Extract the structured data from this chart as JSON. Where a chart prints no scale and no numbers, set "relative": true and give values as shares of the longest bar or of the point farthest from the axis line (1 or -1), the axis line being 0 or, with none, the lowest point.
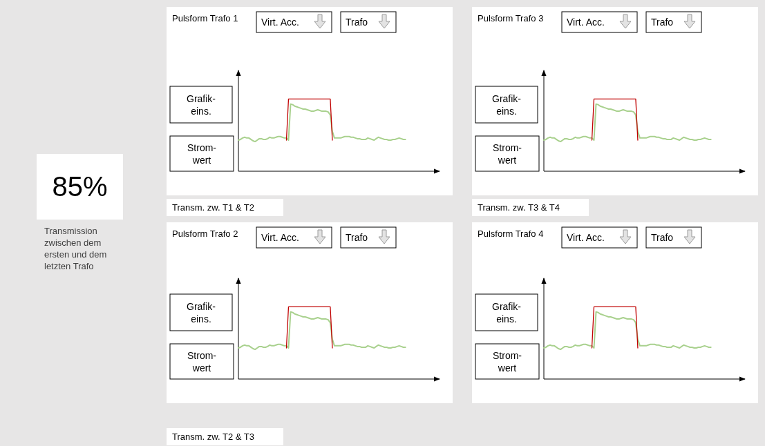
{
  "chart_data": [
    {
      "type": "other",
      "title": "85%",
      "annotations": [
        "Transmission zwischen dem ersten und dem letzten Trafo"
      ]
    },
    {
      "type": "line",
      "title": "Pulsform Trafo 1",
      "relative": true,
      "annotations": [
        "Virt. Acc.",
        "Trafo",
        "Grafik-\neins.",
        "Strom-\nwert",
        "Transm. zw. T1 & T2"
      ],
      "categories": [
        null,
        null,
        null,
        null,
        null,
        null,
        null,
        null,
        null,
        null,
        null,
        null,
        null,
        null,
        null,
        null,
        null,
        null,
        null,
        null,
        null,
        null,
        null,
        null,
        null,
        null,
        null,
        null,
        null,
        null,
        null,
        null,
        null,
        null,
        null,
        null,
        null,
        null,
        null,
        null,
        null,
        null,
        null,
        null,
        null,
        null,
        null,
        null,
        null,
        null,
        null,
        null,
        null,
        null,
        null,
        null,
        null,
        null,
        null,
        null,
        null,
        null,
        null,
        null,
        null,
        null,
        null,
        null,
        null,
        null,
        null,
        null,
        null,
        null,
        null,
        null,
        null,
        null,
        null,
        null,
        null,
        null,
        null,
        null,
        null,
        null,
        null,
        null,
        null,
        null,
        null,
        null,
        null,
        null,
        null,
        null,
        null
      ],
      "series": [
        {
          "color": "#a9d18e",
          "values": [
            0.43,
            0.44,
            0.46,
            0.47,
            0.46,
            0.46,
            0.44,
            0.42,
            0.41,
            0.43,
            0.45,
            0.45,
            0.44,
            0.44,
            0.45,
            0.47,
            0.46,
            0.46,
            0.47,
            0.48,
            0.48,
            0.47,
            0.46,
            0.46,
            0.43,
            0.93,
            0.92,
            0.9,
            0.89,
            0.88,
            0.87,
            0.86,
            0.86,
            0.85,
            0.84,
            0.83,
            0.83,
            0.84,
            0.85,
            0.84,
            0.83,
            0.83,
            0.83,
            0.82,
            0.78,
            0.55,
            0.46,
            0.46,
            0.46,
            0.46,
            0.47,
            0.48,
            0.48,
            0.48,
            0.47,
            0.47,
            0.46,
            0.45,
            0.45,
            0.44,
            0.44,
            0.44,
            0.46,
            0.45,
            0.44,
            0.43,
            0.45,
            0.47,
            0.46,
            0.45,
            0.44,
            0.44,
            0.43,
            0.43,
            0.44,
            0.44,
            0.45,
            0.46,
            0.45,
            0.44,
            0.44,
            null,
            null,
            null,
            null,
            null,
            null,
            null,
            null,
            null,
            null,
            null,
            null,
            null,
            null,
            null,
            null
          ]
        },
        {
          "color": "#c00000",
          "values": [
            null,
            null,
            null,
            null,
            null,
            null,
            null,
            null,
            null,
            null,
            null,
            null,
            null,
            null,
            null,
            null,
            null,
            null,
            null,
            null,
            null,
            null,
            null,
            0.43,
            1,
            1,
            1,
            1,
            1,
            1,
            1,
            1,
            1,
            1,
            1,
            1,
            1,
            1,
            1,
            1,
            1,
            1,
            1,
            1,
            1,
            0.43,
            null,
            null,
            null,
            null,
            null,
            null,
            null,
            null,
            null,
            null,
            null,
            null,
            null,
            null,
            null,
            null,
            null,
            null,
            null,
            null,
            null,
            null,
            null,
            null,
            null,
            null,
            null,
            null,
            null,
            null,
            null,
            null,
            null,
            null,
            null,
            null,
            null,
            null,
            null,
            null,
            null,
            null,
            null,
            null,
            null,
            null,
            null,
            null,
            null,
            null,
            null
          ]
        }
      ]
    },
    {
      "type": "line",
      "title": "Pulsform Trafo 3",
      "relative": true,
      "annotations": [
        "Virt. Acc.",
        "Trafo",
        "Grafik-\neins.",
        "Strom-\nwert",
        "Transm. zw. T3 & T4"
      ],
      "categories": [
        null,
        null,
        null,
        null,
        null,
        null,
        null,
        null,
        null,
        null,
        null,
        null,
        null,
        null,
        null,
        null,
        null,
        null,
        null,
        null,
        null,
        null,
        null,
        null,
        null,
        null,
        null,
        null,
        null,
        null,
        null,
        null,
        null,
        null,
        null,
        null,
        null,
        null,
        null,
        null,
        null,
        null,
        null,
        null,
        null,
        null,
        null,
        null,
        null,
        null,
        null,
        null,
        null,
        null,
        null,
        null,
        null,
        null,
        null,
        null,
        null,
        null,
        null,
        null,
        null,
        null,
        null,
        null,
        null,
        null,
        null,
        null,
        null,
        null,
        null,
        null,
        null,
        null,
        null,
        null,
        null,
        null,
        null,
        null,
        null,
        null,
        null,
        null,
        null,
        null,
        null,
        null,
        null,
        null,
        null,
        null,
        null
      ],
      "series": [
        {
          "color": "#a9d18e",
          "values": [
            0.43,
            0.44,
            0.46,
            0.47,
            0.46,
            0.46,
            0.44,
            0.42,
            0.41,
            0.43,
            0.45,
            0.45,
            0.44,
            0.44,
            0.45,
            0.47,
            0.46,
            0.46,
            0.47,
            0.48,
            0.48,
            0.47,
            0.46,
            0.46,
            0.43,
            0.93,
            0.92,
            0.9,
            0.89,
            0.88,
            0.87,
            0.86,
            0.86,
            0.85,
            0.84,
            0.83,
            0.83,
            0.84,
            0.85,
            0.84,
            0.83,
            0.83,
            0.83,
            0.82,
            0.78,
            0.55,
            0.46,
            0.46,
            0.46,
            0.46,
            0.47,
            0.48,
            0.48,
            0.48,
            0.47,
            0.47,
            0.46,
            0.45,
            0.45,
            0.44,
            0.44,
            0.44,
            0.46,
            0.45,
            0.44,
            0.43,
            0.45,
            0.47,
            0.46,
            0.45,
            0.44,
            0.44,
            0.43,
            0.43,
            0.44,
            0.44,
            0.45,
            0.46,
            0.45,
            0.44,
            0.44,
            null,
            null,
            null,
            null,
            null,
            null,
            null,
            null,
            null,
            null,
            null,
            null,
            null,
            null,
            null,
            null
          ]
        },
        {
          "color": "#c00000",
          "values": [
            null,
            null,
            null,
            null,
            null,
            null,
            null,
            null,
            null,
            null,
            null,
            null,
            null,
            null,
            null,
            null,
            null,
            null,
            null,
            null,
            null,
            null,
            null,
            0.43,
            1,
            1,
            1,
            1,
            1,
            1,
            1,
            1,
            1,
            1,
            1,
            1,
            1,
            1,
            1,
            1,
            1,
            1,
            1,
            1,
            1,
            0.43,
            null,
            null,
            null,
            null,
            null,
            null,
            null,
            null,
            null,
            null,
            null,
            null,
            null,
            null,
            null,
            null,
            null,
            null,
            null,
            null,
            null,
            null,
            null,
            null,
            null,
            null,
            null,
            null,
            null,
            null,
            null,
            null,
            null,
            null,
            null,
            null,
            null,
            null,
            null,
            null,
            null,
            null,
            null,
            null,
            null,
            null,
            null,
            null,
            null,
            null,
            null
          ]
        }
      ]
    },
    {
      "type": "line",
      "title": "Pulsform Trafo 2",
      "relative": true,
      "annotations": [
        "Virt. Acc.",
        "Trafo",
        "Grafik-\neins.",
        "Strom-\nwert",
        "Transm. zw. T2 & T3"
      ],
      "categories": [
        null,
        null,
        null,
        null,
        null,
        null,
        null,
        null,
        null,
        null,
        null,
        null,
        null,
        null,
        null,
        null,
        null,
        null,
        null,
        null,
        null,
        null,
        null,
        null,
        null,
        null,
        null,
        null,
        null,
        null,
        null,
        null,
        null,
        null,
        null,
        null,
        null,
        null,
        null,
        null,
        null,
        null,
        null,
        null,
        null,
        null,
        null,
        null,
        null,
        null,
        null,
        null,
        null,
        null,
        null,
        null,
        null,
        null,
        null,
        null,
        null,
        null,
        null,
        null,
        null,
        null,
        null,
        null,
        null,
        null,
        null,
        null,
        null,
        null,
        null,
        null,
        null,
        null,
        null,
        null,
        null,
        null,
        null,
        null,
        null,
        null,
        null,
        null,
        null,
        null,
        null,
        null,
        null,
        null,
        null,
        null,
        null
      ],
      "series": [
        {
          "color": "#a9d18e",
          "values": [
            0.43,
            0.44,
            0.46,
            0.47,
            0.46,
            0.46,
            0.44,
            0.42,
            0.41,
            0.43,
            0.45,
            0.45,
            0.44,
            0.44,
            0.45,
            0.47,
            0.46,
            0.46,
            0.47,
            0.48,
            0.48,
            0.47,
            0.46,
            0.46,
            0.43,
            0.93,
            0.92,
            0.9,
            0.89,
            0.88,
            0.87,
            0.86,
            0.86,
            0.85,
            0.84,
            0.83,
            0.83,
            0.84,
            0.85,
            0.84,
            0.83,
            0.83,
            0.83,
            0.82,
            0.78,
            0.55,
            0.46,
            0.46,
            0.46,
            0.46,
            0.47,
            0.48,
            0.48,
            0.48,
            0.47,
            0.47,
            0.46,
            0.45,
            0.45,
            0.44,
            0.44,
            0.44,
            0.46,
            0.45,
            0.44,
            0.43,
            0.45,
            0.47,
            0.46,
            0.45,
            0.44,
            0.44,
            0.43,
            0.43,
            0.44,
            0.44,
            0.45,
            0.46,
            0.45,
            0.44,
            0.44,
            null,
            null,
            null,
            null,
            null,
            null,
            null,
            null,
            null,
            null,
            null,
            null,
            null,
            null,
            null,
            null
          ]
        },
        {
          "color": "#c00000",
          "values": [
            null,
            null,
            null,
            null,
            null,
            null,
            null,
            null,
            null,
            null,
            null,
            null,
            null,
            null,
            null,
            null,
            null,
            null,
            null,
            null,
            null,
            null,
            null,
            0.43,
            1,
            1,
            1,
            1,
            1,
            1,
            1,
            1,
            1,
            1,
            1,
            1,
            1,
            1,
            1,
            1,
            1,
            1,
            1,
            1,
            1,
            0.43,
            null,
            null,
            null,
            null,
            null,
            null,
            null,
            null,
            null,
            null,
            null,
            null,
            null,
            null,
            null,
            null,
            null,
            null,
            null,
            null,
            null,
            null,
            null,
            null,
            null,
            null,
            null,
            null,
            null,
            null,
            null,
            null,
            null,
            null,
            null,
            null,
            null,
            null,
            null,
            null,
            null,
            null,
            null,
            null,
            null,
            null,
            null,
            null,
            null,
            null,
            null
          ]
        }
      ]
    },
    {
      "type": "line",
      "title": "Pulsform Trafo 4",
      "relative": true,
      "annotations": [
        "Virt. Acc.",
        "Trafo",
        "Grafik-\neins.",
        "Strom-\nwert"
      ],
      "categories": [
        null,
        null,
        null,
        null,
        null,
        null,
        null,
        null,
        null,
        null,
        null,
        null,
        null,
        null,
        null,
        null,
        null,
        null,
        null,
        null,
        null,
        null,
        null,
        null,
        null,
        null,
        null,
        null,
        null,
        null,
        null,
        null,
        null,
        null,
        null,
        null,
        null,
        null,
        null,
        null,
        null,
        null,
        null,
        null,
        null,
        null,
        null,
        null,
        null,
        null,
        null,
        null,
        null,
        null,
        null,
        null,
        null,
        null,
        null,
        null,
        null,
        null,
        null,
        null,
        null,
        null,
        null,
        null,
        null,
        null,
        null,
        null,
        null,
        null,
        null,
        null,
        null,
        null,
        null,
        null,
        null,
        null,
        null,
        null,
        null,
        null,
        null,
        null,
        null,
        null,
        null,
        null,
        null,
        null,
        null,
        null,
        null
      ],
      "series": [
        {
          "color": "#a9d18e",
          "values": [
            0.43,
            0.44,
            0.46,
            0.47,
            0.46,
            0.46,
            0.44,
            0.42,
            0.41,
            0.43,
            0.45,
            0.45,
            0.44,
            0.44,
            0.45,
            0.47,
            0.46,
            0.46,
            0.47,
            0.48,
            0.48,
            0.47,
            0.46,
            0.46,
            0.43,
            0.93,
            0.92,
            0.9,
            0.89,
            0.88,
            0.87,
            0.86,
            0.86,
            0.85,
            0.84,
            0.83,
            0.83,
            0.84,
            0.85,
            0.84,
            0.83,
            0.83,
            0.83,
            0.82,
            0.78,
            0.55,
            0.46,
            0.46,
            0.46,
            0.46,
            0.47,
            0.48,
            0.48,
            0.48,
            0.47,
            0.47,
            0.46,
            0.45,
            0.45,
            0.44,
            0.44,
            0.44,
            0.46,
            0.45,
            0.44,
            0.43,
            0.45,
            0.47,
            0.46,
            0.45,
            0.44,
            0.44,
            0.43,
            0.43,
            0.44,
            0.44,
            0.45,
            0.46,
            0.45,
            0.44,
            0.44,
            null,
            null,
            null,
            null,
            null,
            null,
            null,
            null,
            null,
            null,
            null,
            null,
            null,
            null,
            null,
            null
          ]
        },
        {
          "color": "#c00000",
          "values": [
            null,
            null,
            null,
            null,
            null,
            null,
            null,
            null,
            null,
            null,
            null,
            null,
            null,
            null,
            null,
            null,
            null,
            null,
            null,
            null,
            null,
            null,
            null,
            0.43,
            1,
            1,
            1,
            1,
            1,
            1,
            1,
            1,
            1,
            1,
            1,
            1,
            1,
            1,
            1,
            1,
            1,
            1,
            1,
            1,
            1,
            0.43,
            null,
            null,
            null,
            null,
            null,
            null,
            null,
            null,
            null,
            null,
            null,
            null,
            null,
            null,
            null,
            null,
            null,
            null,
            null,
            null,
            null,
            null,
            null,
            null,
            null,
            null,
            null,
            null,
            null,
            null,
            null,
            null,
            null,
            null,
            null,
            null,
            null,
            null,
            null,
            null,
            null,
            null,
            null,
            null,
            null,
            null,
            null,
            null,
            null,
            null,
            null
          ]
        }
      ]
    }
  ]
}
